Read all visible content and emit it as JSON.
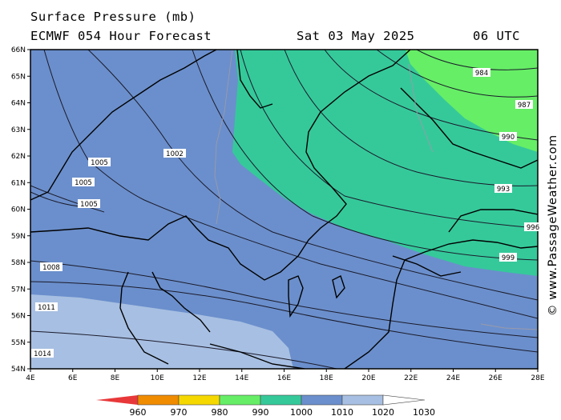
{
  "header": {
    "title": "Surface Pressure (mb)",
    "subtitle": "ECMWF 054 Hour Forecast",
    "date": "Sat 03 May 2025",
    "time": "06 UTC"
  },
  "map": {
    "region": "Scandinavia / Baltic",
    "lon_range": [
      4,
      28
    ],
    "lat_range": [
      54,
      66
    ],
    "lon_ticks": [
      "4E",
      "6E",
      "8E",
      "10E",
      "12E",
      "14E",
      "16E",
      "18E",
      "20E",
      "22E",
      "24E",
      "26E",
      "28E"
    ],
    "lat_ticks": [
      "54N",
      "55N",
      "56N",
      "57N",
      "58N",
      "59N",
      "60N",
      "61N",
      "62N",
      "63N",
      "64N",
      "65N",
      "66N"
    ],
    "fill_colors": {
      "c1010": "#6b8fcc",
      "c1020": "#a7bfe2",
      "c1000": "#35c99a",
      "c990": "#66ee66"
    },
    "isobars": [
      {
        "label": "984",
        "value": 984
      },
      {
        "label": "987",
        "value": 987
      },
      {
        "label": "990",
        "value": 990
      },
      {
        "label": "993",
        "value": 993
      },
      {
        "label": "996",
        "value": 996
      },
      {
        "label": "999",
        "value": 999
      },
      {
        "label": "1002",
        "value": 1002
      },
      {
        "label": "1005",
        "value": 1005
      },
      {
        "label": "1005",
        "value": 1005
      },
      {
        "label": "1005",
        "value": 1005
      },
      {
        "label": "1008",
        "value": 1008
      },
      {
        "label": "1011",
        "value": 1011
      },
      {
        "label": "1014",
        "value": 1014
      }
    ]
  },
  "legend": {
    "labels": [
      "960",
      "970",
      "980",
      "990",
      "1000",
      "1010",
      "1020",
      "1030"
    ],
    "colors": [
      "#e8383a",
      "#f08c00",
      "#f5d800",
      "#66ee66",
      "#35c99a",
      "#6b8fcc",
      "#a7bfe2",
      "#dde6f6"
    ]
  },
  "watermark": "© www.PassageWeather.com"
}
